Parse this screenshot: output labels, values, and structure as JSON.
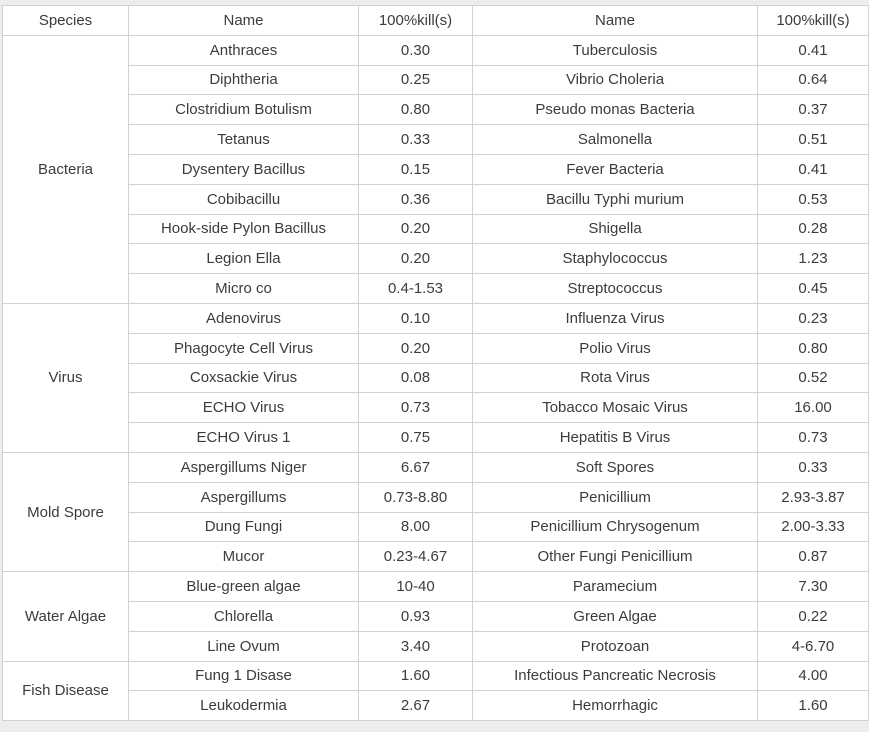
{
  "palette": {
    "page_background": "#ededed",
    "table_background": "#ffffff",
    "border": "#d2d2d2",
    "text": "#3c3c3c"
  },
  "table": {
    "headers": [
      "Species",
      "Name",
      "100%kill(s)",
      "Name",
      "100%kill(s)"
    ],
    "groups": [
      {
        "species": "Bacteria",
        "rows": [
          {
            "name1": "Anthraces",
            "kill1": "0.30",
            "name2": "Tuberculosis",
            "kill2": "0.41"
          },
          {
            "name1": "Diphtheria",
            "kill1": "0.25",
            "name2": "Vibrio Choleria",
            "kill2": "0.64"
          },
          {
            "name1": "Clostridium Botulism",
            "kill1": "0.80",
            "name2": "Pseudo monas Bacteria",
            "kill2": "0.37"
          },
          {
            "name1": "Tetanus",
            "kill1": "0.33",
            "name2": "Salmonella",
            "kill2": "0.51"
          },
          {
            "name1": "Dysentery Bacillus",
            "kill1": "0.15",
            "name2": "Fever Bacteria",
            "kill2": "0.41"
          },
          {
            "name1": "Cobibacillu",
            "kill1": "0.36",
            "name2": "Bacillu Typhi murium",
            "kill2": "0.53"
          },
          {
            "name1": "Hook-side Pylon Bacillus",
            "kill1": "0.20",
            "name2": "Shigella",
            "kill2": "0.28"
          },
          {
            "name1": "Legion Ella",
            "kill1": "0.20",
            "name2": "Staphylococcus",
            "kill2": "1.23"
          },
          {
            "name1": "Micro co",
            "kill1": "0.4-1.53",
            "name2": "Streptococcus",
            "kill2": "0.45"
          }
        ]
      },
      {
        "species": "Virus",
        "rows": [
          {
            "name1": "Adenovirus",
            "kill1": "0.10",
            "name2": "Influenza Virus",
            "kill2": "0.23"
          },
          {
            "name1": "Phagocyte Cell Virus",
            "kill1": "0.20",
            "name2": "Polio Virus",
            "kill2": "0.80"
          },
          {
            "name1": "Coxsackie Virus",
            "kill1": "0.08",
            "name2": "Rota Virus",
            "kill2": "0.52"
          },
          {
            "name1": "ECHO Virus",
            "kill1": "0.73",
            "name2": "Tobacco Mosaic Virus",
            "kill2": "16.00"
          },
          {
            "name1": "ECHO Virus 1",
            "kill1": "0.75",
            "name2": "Hepatitis B Virus",
            "kill2": "0.73"
          }
        ]
      },
      {
        "species": "Mold Spore",
        "rows": [
          {
            "name1": "Aspergillums Niger",
            "kill1": "6.67",
            "name2": "Soft Spores",
            "kill2": "0.33"
          },
          {
            "name1": "Aspergillums",
            "kill1": "0.73-8.80",
            "name2": "Penicillium",
            "kill2": "2.93-3.87"
          },
          {
            "name1": "Dung Fungi",
            "kill1": "8.00",
            "name2": "Penicillium Chrysogenum",
            "kill2": "2.00-3.33"
          },
          {
            "name1": "Mucor",
            "kill1": "0.23-4.67",
            "name2": "Other Fungi Penicillium",
            "kill2": "0.87"
          }
        ]
      },
      {
        "species": "Water Algae",
        "rows": [
          {
            "name1": "Blue-green algae",
            "kill1": "10-40",
            "name2": "Paramecium",
            "kill2": "7.30"
          },
          {
            "name1": "Chlorella",
            "kill1": "0.93",
            "name2": "Green Algae",
            "kill2": "0.22"
          },
          {
            "name1": "Line Ovum",
            "kill1": "3.40",
            "name2": "Protozoan",
            "kill2": "4-6.70"
          }
        ]
      },
      {
        "species": "Fish Disease",
        "rows": [
          {
            "name1": "Fung 1 Disase",
            "kill1": "1.60",
            "name2": "Infectious Pancreatic Necrosis",
            "kill2": "4.00"
          },
          {
            "name1": "Leukodermia",
            "kill1": "2.67",
            "name2": "Hemorrhagic",
            "kill2": "1.60"
          }
        ]
      }
    ]
  }
}
